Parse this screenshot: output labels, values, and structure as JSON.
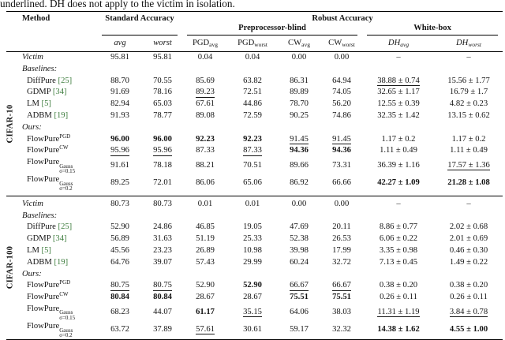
{
  "caption": "underlined. DH does not apply to the victim in isolation.",
  "colors": {
    "citation_link": "#3e7d3e",
    "rule": "#000000",
    "text": "#141414"
  },
  "table": {
    "headers": {
      "method": "Method",
      "standard": "Standard Accuracy",
      "robust": "Robust Accuracy",
      "preprocessor_blind": "Preprocessor-blind",
      "white_box": "White-box",
      "subcols": [
        {
          "base": "avg",
          "sub": "",
          "it": true
        },
        {
          "base": "worst",
          "sub": "",
          "it": true
        },
        {
          "base": "PGD",
          "sub": "avg",
          "it": false
        },
        {
          "base": "PGD",
          "sub": "worst",
          "it": false
        },
        {
          "base": "CW",
          "sub": "avg",
          "it": false
        },
        {
          "base": "CW",
          "sub": "worst",
          "it": false
        },
        {
          "base": "DH",
          "sub": "avg",
          "it": true
        },
        {
          "base": "DH",
          "sub": "worst",
          "it": true
        }
      ]
    },
    "legend": {
      "bold_means": "best",
      "underline_means": "second best"
    },
    "sections": [
      {
        "group": "CIFAR-10",
        "rows": [
          {
            "type": "data",
            "method": {
              "text": "Victim",
              "it": true
            },
            "cells": [
              {
                "v": "95.81"
              },
              {
                "v": "95.81"
              },
              {
                "v": "0.04"
              },
              {
                "v": "0.04"
              },
              {
                "v": "0.00"
              },
              {
                "v": "0.00"
              },
              {
                "v": "–"
              },
              {
                "v": "–"
              }
            ]
          },
          {
            "type": "label",
            "text": "Baselines:"
          },
          {
            "type": "data",
            "method": {
              "text": "DiffPure",
              "cite": "[25]",
              "indent": true
            },
            "cells": [
              {
                "v": "88.70"
              },
              {
                "v": "70.55"
              },
              {
                "v": "85.69"
              },
              {
                "v": "63.82"
              },
              {
                "v": "86.31"
              },
              {
                "v": "64.94"
              },
              {
                "v": "38.88 ± 0.74",
                "s": "u"
              },
              {
                "v": "15.56 ± 1.77"
              }
            ]
          },
          {
            "type": "data",
            "method": {
              "text": "GDMP",
              "cite": "[34]",
              "indent": true
            },
            "cells": [
              {
                "v": "91.69"
              },
              {
                "v": "78.16"
              },
              {
                "v": "89.23",
                "s": "u"
              },
              {
                "v": "72.51"
              },
              {
                "v": "89.89"
              },
              {
                "v": "74.05"
              },
              {
                "v": "32.65 ± 1.17"
              },
              {
                "v": "16.79 ± 1.7"
              }
            ]
          },
          {
            "type": "data",
            "method": {
              "text": "LM",
              "cite": "[5]",
              "indent": true
            },
            "cells": [
              {
                "v": "82.94"
              },
              {
                "v": "65.03"
              },
              {
                "v": "67.61"
              },
              {
                "v": "44.86"
              },
              {
                "v": "78.70"
              },
              {
                "v": "56.20"
              },
              {
                "v": "12.55 ± 0.39"
              },
              {
                "v": "4.82 ± 0.23"
              }
            ]
          },
          {
            "type": "data",
            "method": {
              "text": "ADBM",
              "cite": "[19]",
              "indent": true
            },
            "cells": [
              {
                "v": "91.93"
              },
              {
                "v": "78.77"
              },
              {
                "v": "89.08"
              },
              {
                "v": "72.59"
              },
              {
                "v": "90.25"
              },
              {
                "v": "74.86"
              },
              {
                "v": "32.35 ± 1.42"
              },
              {
                "v": "13.15 ± 0.62"
              }
            ]
          },
          {
            "type": "label",
            "text": "Ours:"
          },
          {
            "type": "data",
            "method": {
              "text": "FlowPure",
              "sup": "PGD",
              "indent": true
            },
            "cells": [
              {
                "v": "96.00",
                "s": "b"
              },
              {
                "v": "96.00",
                "s": "b"
              },
              {
                "v": "92.23",
                "s": "b"
              },
              {
                "v": "92.23",
                "s": "b"
              },
              {
                "v": "91.45",
                "s": "u"
              },
              {
                "v": "91.45",
                "s": "u"
              },
              {
                "v": "1.17 ± 0.2"
              },
              {
                "v": "1.17 ± 0.2"
              }
            ]
          },
          {
            "type": "data",
            "method": {
              "text": "FlowPure",
              "sup": "CW",
              "indent": true
            },
            "cells": [
              {
                "v": "95.96",
                "s": "u"
              },
              {
                "v": "95.96",
                "s": "u"
              },
              {
                "v": "87.33"
              },
              {
                "v": "87.33",
                "s": "u"
              },
              {
                "v": "94.36",
                "s": "b"
              },
              {
                "v": "94.36",
                "s": "b"
              },
              {
                "v": "1.11 ± 0.49"
              },
              {
                "v": "1.11 ± 0.49"
              }
            ]
          },
          {
            "type": "data",
            "method": {
              "text": "FlowPure",
              "sup": "Gauss",
              "sub": "σ=0.15",
              "indent": true
            },
            "cells": [
              {
                "v": "91.61"
              },
              {
                "v": "78.18"
              },
              {
                "v": "88.21"
              },
              {
                "v": "70.51"
              },
              {
                "v": "89.66"
              },
              {
                "v": "73.31"
              },
              {
                "v": "36.39 ± 1.16"
              },
              {
                "v": "17.57 ± 1.36",
                "s": "u"
              }
            ]
          },
          {
            "type": "data",
            "method": {
              "text": "FlowPure",
              "sup": "Gauss",
              "sub": "σ=0.2",
              "indent": true
            },
            "cells": [
              {
                "v": "89.25"
              },
              {
                "v": "72.01"
              },
              {
                "v": "86.06"
              },
              {
                "v": "65.06"
              },
              {
                "v": "86.92"
              },
              {
                "v": "66.66"
              },
              {
                "v": "42.27 ± 1.09",
                "s": "b"
              },
              {
                "v": "21.28 ± 1.08",
                "s": "b"
              }
            ]
          }
        ]
      },
      {
        "group": "CIFAR-100",
        "rows": [
          {
            "type": "data",
            "method": {
              "text": "Victim",
              "it": true
            },
            "cells": [
              {
                "v": "80.73"
              },
              {
                "v": "80.73"
              },
              {
                "v": "0.01"
              },
              {
                "v": "0.01"
              },
              {
                "v": "0.00"
              },
              {
                "v": "0.00"
              },
              {
                "v": "–"
              },
              {
                "v": "–"
              }
            ]
          },
          {
            "type": "label",
            "text": "Baselines:"
          },
          {
            "type": "data",
            "method": {
              "text": "DiffPure",
              "cite": "[25]",
              "indent": true
            },
            "cells": [
              {
                "v": "52.90"
              },
              {
                "v": "24.86"
              },
              {
                "v": "46.85"
              },
              {
                "v": "19.05"
              },
              {
                "v": "47.69"
              },
              {
                "v": "20.11"
              },
              {
                "v": "8.86 ± 0.77"
              },
              {
                "v": "2.02 ± 0.68"
              }
            ]
          },
          {
            "type": "data",
            "method": {
              "text": "GDMP",
              "cite": "[34]",
              "indent": true
            },
            "cells": [
              {
                "v": "56.89"
              },
              {
                "v": "31.63"
              },
              {
                "v": "51.19"
              },
              {
                "v": "25.33"
              },
              {
                "v": "52.38"
              },
              {
                "v": "26.53"
              },
              {
                "v": "6.06 ± 0.22"
              },
              {
                "v": "2.01 ± 0.69"
              }
            ]
          },
          {
            "type": "data",
            "method": {
              "text": "LM",
              "cite": "[5]",
              "indent": true
            },
            "cells": [
              {
                "v": "45.56"
              },
              {
                "v": "23.23"
              },
              {
                "v": "26.89"
              },
              {
                "v": "10.98"
              },
              {
                "v": "39.98"
              },
              {
                "v": "17.99"
              },
              {
                "v": "3.35 ± 0.98"
              },
              {
                "v": "0.46 ± 0.30"
              }
            ]
          },
          {
            "type": "data",
            "method": {
              "text": "ADBM",
              "cite": "[19]",
              "indent": true
            },
            "cells": [
              {
                "v": "64.76"
              },
              {
                "v": "39.07"
              },
              {
                "v": "57.43"
              },
              {
                "v": "29.99"
              },
              {
                "v": "60.24"
              },
              {
                "v": "32.72"
              },
              {
                "v": "7.13 ± 0.45"
              },
              {
                "v": "1.49 ± 0.22"
              }
            ]
          },
          {
            "type": "label",
            "text": "Ours:"
          },
          {
            "type": "data",
            "method": {
              "text": "FlowPure",
              "sup": "PGD",
              "indent": true
            },
            "cells": [
              {
                "v": "80.75",
                "s": "u"
              },
              {
                "v": "80.75",
                "s": "u"
              },
              {
                "v": "52.90"
              },
              {
                "v": "52.90",
                "s": "b"
              },
              {
                "v": "66.67",
                "s": "u"
              },
              {
                "v": "66.67",
                "s": "u"
              },
              {
                "v": "0.38 ± 0.20"
              },
              {
                "v": "0.38 ± 0.20"
              }
            ]
          },
          {
            "type": "data",
            "method": {
              "text": "FlowPure",
              "sup": "CW",
              "indent": true
            },
            "cells": [
              {
                "v": "80.84",
                "s": "b"
              },
              {
                "v": "80.84",
                "s": "b"
              },
              {
                "v": "28.67"
              },
              {
                "v": "28.67"
              },
              {
                "v": "75.51",
                "s": "b"
              },
              {
                "v": "75.51",
                "s": "b"
              },
              {
                "v": "0.26 ± 0.11"
              },
              {
                "v": "0.26 ± 0.11"
              }
            ]
          },
          {
            "type": "data",
            "method": {
              "text": "FlowPure",
              "sup": "Gauss",
              "sub": "σ=0.15",
              "indent": true
            },
            "cells": [
              {
                "v": "68.23"
              },
              {
                "v": "44.07"
              },
              {
                "v": "61.17",
                "s": "b"
              },
              {
                "v": "35.15",
                "s": "u"
              },
              {
                "v": "64.06"
              },
              {
                "v": "38.03"
              },
              {
                "v": "11.31 ± 1.19",
                "s": "u"
              },
              {
                "v": "3.84 ± 0.78",
                "s": "u"
              }
            ]
          },
          {
            "type": "data",
            "method": {
              "text": "FlowPure",
              "sup": "Gauss",
              "sub": "σ=0.2",
              "indent": true
            },
            "cells": [
              {
                "v": "63.72"
              },
              {
                "v": "37.89"
              },
              {
                "v": "57.61",
                "s": "u"
              },
              {
                "v": "30.61"
              },
              {
                "v": "59.17"
              },
              {
                "v": "32.32"
              },
              {
                "v": "14.38 ± 1.62",
                "s": "b"
              },
              {
                "v": "4.55 ± 1.00",
                "s": "b"
              }
            ]
          }
        ]
      }
    ]
  }
}
